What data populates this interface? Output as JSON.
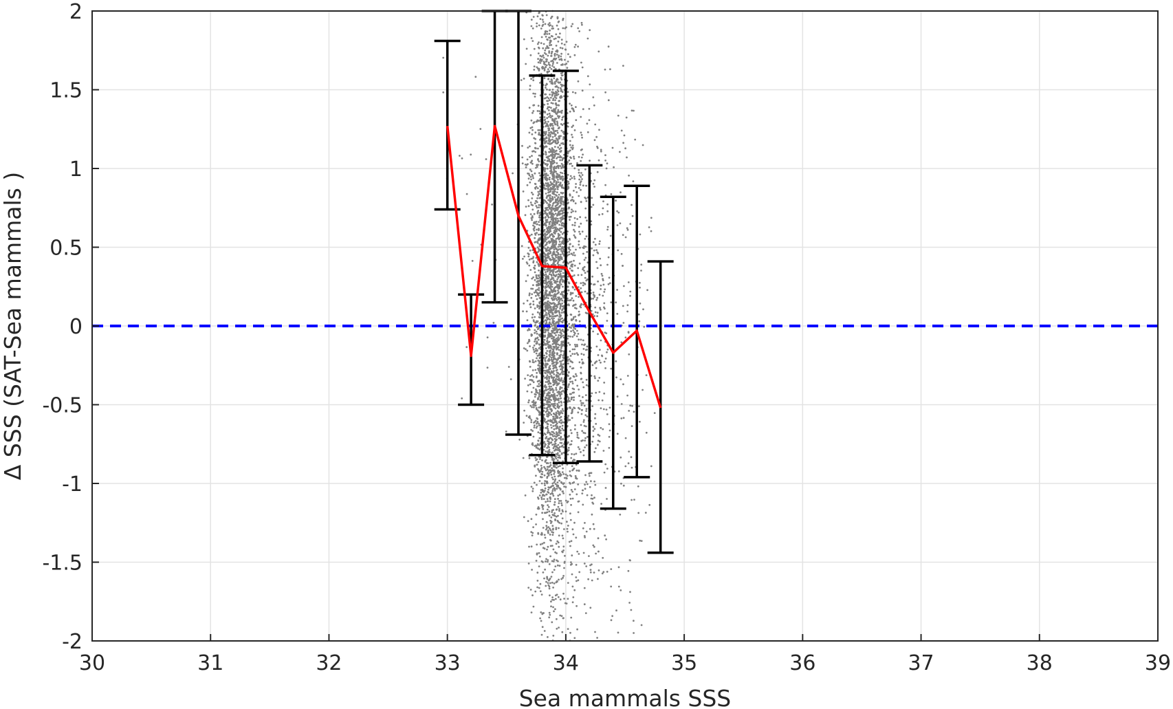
{
  "chart_data": {
    "type": "scatter",
    "title": "",
    "xlabel": "Sea mammals  SSS",
    "ylabel": "Δ SSS (SAT-Sea mammals )",
    "xlim": [
      30,
      39
    ],
    "ylim": [
      -2,
      2
    ],
    "xticks": [
      "30",
      "31",
      "32",
      "33",
      "34",
      "35",
      "36",
      "37",
      "38",
      "39"
    ],
    "yticks": [
      "-2",
      "-1.5",
      "-1",
      "-0.5",
      "0",
      "0.5",
      "1",
      "1.5",
      "2"
    ],
    "grid": true,
    "reference_line": {
      "y": 0,
      "style": "dashed",
      "color": "#0000ff"
    },
    "mean_line": {
      "color": "#ff0000",
      "x": [
        33.0,
        33.2,
        33.4,
        33.6,
        33.8,
        34.0,
        34.2,
        34.4,
        34.6,
        34.8
      ],
      "y": [
        1.27,
        -0.19,
        1.27,
        0.7,
        0.38,
        0.37,
        0.09,
        -0.17,
        -0.03,
        -0.52
      ]
    },
    "error_bars": {
      "color": "#000000",
      "x": [
        33.0,
        33.2,
        33.4,
        33.6,
        33.8,
        34.0,
        34.2,
        34.4,
        34.6,
        34.8
      ],
      "lower": [
        0.74,
        -0.5,
        0.15,
        -0.69,
        -0.82,
        -0.87,
        -0.86,
        -1.16,
        -0.96,
        -1.44
      ],
      "upper": [
        1.81,
        0.2,
        2.0,
        2.0,
        1.59,
        1.62,
        1.02,
        0.82,
        0.89,
        0.41
      ]
    },
    "scatter_series": {
      "color": "#808080",
      "clusters": [
        {
          "x_center": 33.88,
          "x_spread": 0.09,
          "y_mean": 0.3,
          "y_sd": 0.95,
          "count": 4200
        },
        {
          "x_center": 34.15,
          "x_spread": 0.12,
          "y_mean": 0.0,
          "y_sd": 0.85,
          "count": 700
        },
        {
          "x_center": 34.5,
          "x_spread": 0.12,
          "y_mean": -0.1,
          "y_sd": 0.9,
          "count": 160
        },
        {
          "x_center": 33.3,
          "x_spread": 0.15,
          "y_mean": 0.6,
          "y_sd": 0.7,
          "count": 25
        }
      ]
    }
  }
}
